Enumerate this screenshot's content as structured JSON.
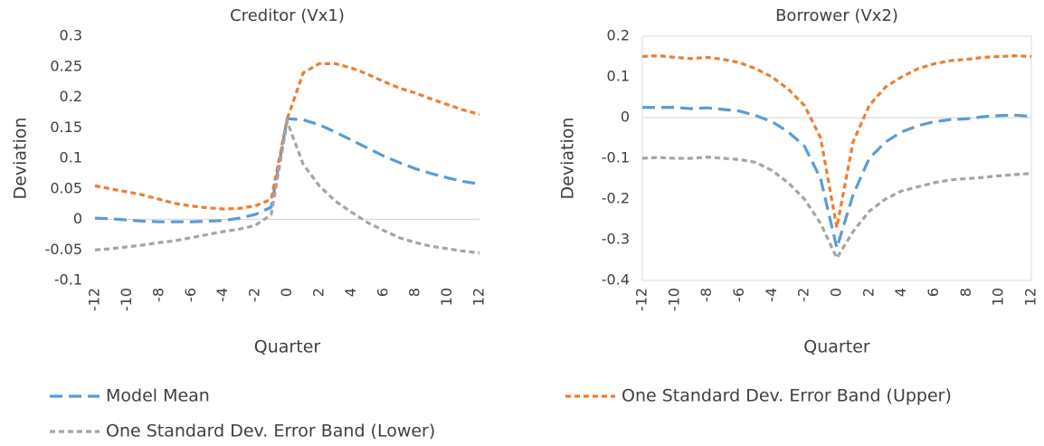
{
  "chart_data": [
    {
      "type": "line",
      "title": "Creditor (Vx1)",
      "x_label": "Quarter",
      "y_label": "Deviation",
      "x": [
        -12,
        -11,
        -10,
        -9,
        -8,
        -7,
        -6,
        -5,
        -4,
        -3,
        -2,
        -1,
        0,
        1,
        2,
        3,
        4,
        5,
        6,
        7,
        8,
        9,
        10,
        11,
        12
      ],
      "xlim": [
        -12,
        12
      ],
      "xticks": [
        -12,
        -10,
        -8,
        -6,
        -4,
        -2,
        0,
        2,
        4,
        6,
        8,
        10,
        12
      ],
      "ylim": [
        -0.1,
        0.3
      ],
      "yticks": [
        -0.1,
        -0.05,
        0,
        0.05,
        0.1,
        0.15,
        0.2,
        0.25,
        0.3
      ],
      "series": [
        {
          "name": "Model Mean",
          "color": "#5b9bd5",
          "values": [
            0.002,
            0.001,
            -0.001,
            -0.003,
            -0.004,
            -0.004,
            -0.004,
            -0.003,
            -0.002,
            0.002,
            0.008,
            0.02,
            0.165,
            0.163,
            0.155,
            0.143,
            0.13,
            0.117,
            0.104,
            0.093,
            0.083,
            0.075,
            0.068,
            0.062,
            0.058
          ]
        },
        {
          "name": "One Standard Dev. Error Band (Upper)",
          "color": "#ed7d31",
          "values": [
            0.055,
            0.05,
            0.045,
            0.04,
            0.033,
            0.026,
            0.022,
            0.019,
            0.017,
            0.018,
            0.022,
            0.033,
            0.165,
            0.24,
            0.255,
            0.255,
            0.248,
            0.238,
            0.226,
            0.215,
            0.207,
            0.197,
            0.188,
            0.179,
            0.172
          ]
        },
        {
          "name": "One Standard Dev. Error Band (Lower)",
          "color": "#a5a5a5",
          "values": [
            -0.05,
            -0.048,
            -0.045,
            -0.042,
            -0.038,
            -0.035,
            -0.03,
            -0.025,
            -0.02,
            -0.016,
            -0.01,
            0.008,
            0.16,
            0.09,
            0.055,
            0.03,
            0.012,
            -0.005,
            -0.018,
            -0.03,
            -0.038,
            -0.044,
            -0.048,
            -0.052,
            -0.055
          ]
        }
      ]
    },
    {
      "type": "line",
      "title": "Borrower (Vx2)",
      "x_label": "Quarter",
      "y_label": "Deviation",
      "x": [
        -12,
        -11,
        -10,
        -9,
        -8,
        -7,
        -6,
        -5,
        -4,
        -3,
        -2,
        -1,
        0,
        1,
        2,
        3,
        4,
        5,
        6,
        7,
        8,
        9,
        10,
        11,
        12
      ],
      "xlim": [
        -12,
        12
      ],
      "xticks": [
        -12,
        -10,
        -8,
        -6,
        -4,
        -2,
        0,
        2,
        4,
        6,
        8,
        10,
        12
      ],
      "ylim": [
        -0.4,
        0.2
      ],
      "yticks": [
        -0.4,
        -0.3,
        -0.2,
        -0.1,
        0,
        0.1,
        0.2
      ],
      "series": [
        {
          "color": "#5b9bd5",
          "values": [
            0.025,
            0.025,
            0.025,
            0.022,
            0.024,
            0.02,
            0.016,
            0.005,
            -0.01,
            -0.035,
            -0.07,
            -0.15,
            -0.32,
            -0.19,
            -0.1,
            -0.06,
            -0.035,
            -0.02,
            -0.01,
            -0.005,
            -0.003,
            0.002,
            0.005,
            0.006,
            0.003
          ]
        },
        {
          "color": "#ed7d31",
          "values": [
            0.15,
            0.152,
            0.148,
            0.145,
            0.148,
            0.143,
            0.135,
            0.12,
            0.1,
            0.07,
            0.03,
            -0.05,
            -0.27,
            -0.06,
            0.03,
            0.075,
            0.1,
            0.12,
            0.132,
            0.14,
            0.143,
            0.148,
            0.15,
            0.152,
            0.15
          ]
        },
        {
          "color": "#a5a5a5",
          "values": [
            -0.1,
            -0.098,
            -0.1,
            -0.1,
            -0.097,
            -0.1,
            -0.103,
            -0.11,
            -0.13,
            -0.16,
            -0.2,
            -0.26,
            -0.345,
            -0.28,
            -0.23,
            -0.2,
            -0.18,
            -0.17,
            -0.16,
            -0.153,
            -0.15,
            -0.147,
            -0.143,
            -0.14,
            -0.137
          ]
        }
      ]
    }
  ]
}
